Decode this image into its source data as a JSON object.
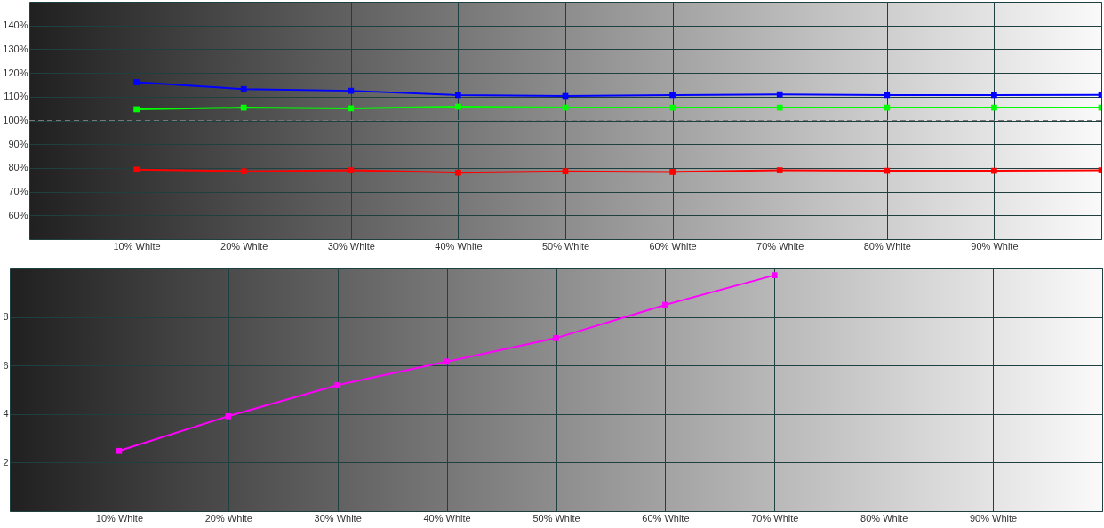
{
  "chart_data": [
    {
      "type": "line",
      "categories": [
        "10% White",
        "20% White",
        "30% White",
        "40% White",
        "50% White",
        "60% White",
        "70% White",
        "80% White",
        "90% White",
        null
      ],
      "series": [
        {
          "color": "#0000ff",
          "values": [
            116.1,
            113.2,
            112.5,
            110.7,
            110.3,
            110.7,
            111,
            110.7,
            110.7,
            110.8
          ]
        },
        {
          "color": "#00ff00",
          "values": [
            104.7,
            105.4,
            105.1,
            105.8,
            105.4,
            105.4,
            105.4,
            105.4,
            105.4,
            105.4
          ]
        },
        {
          "color": "#ff0000",
          "values": [
            79.3,
            78.6,
            79,
            78,
            78.6,
            78.3,
            79,
            78.8,
            78.8,
            79
          ]
        }
      ],
      "ylim": [
        50,
        150
      ],
      "yticks": [
        {
          "value": 60,
          "label": "60%"
        },
        {
          "value": 70,
          "label": "70%"
        },
        {
          "value": 80,
          "label": "80%"
        },
        {
          "value": 90,
          "label": "90%"
        },
        {
          "value": 100,
          "label": "100%"
        },
        {
          "value": 110,
          "label": "110%"
        },
        {
          "value": 120,
          "label": "120%"
        },
        {
          "value": 130,
          "label": "130%"
        },
        {
          "value": 140,
          "label": "140%"
        }
      ],
      "ref_lines": [
        {
          "axis": "y",
          "value": 100,
          "line_style": "dashed"
        }
      ],
      "grid": true,
      "legend": false,
      "marker": "square"
    },
    {
      "type": "line",
      "categories": [
        "10% White",
        "20% White",
        "30% White",
        "40% White",
        "50% White",
        "60% White",
        "70% White",
        "80% White",
        "90% White",
        null
      ],
      "series": [
        {
          "color": "#ff00ff",
          "values": [
            2.48,
            3.91,
            5.19,
            6.16,
            7.13,
            8.5,
            9.72,
            null,
            null,
            null
          ]
        }
      ],
      "ylim": [
        0,
        10
      ],
      "yticks": [
        2,
        4,
        6,
        8
      ],
      "grid": true,
      "legend": false,
      "marker": "square"
    }
  ]
}
